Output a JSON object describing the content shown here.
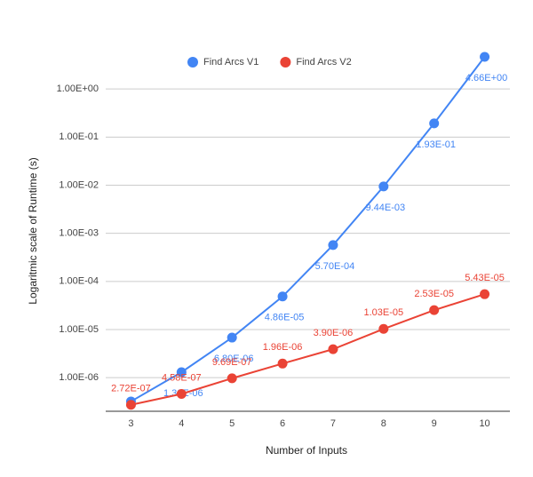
{
  "chart_data": {
    "type": "line",
    "x_label": "Number of Inputs",
    "y_label": "Logaritmic scale of Runtime (s)",
    "categories": [
      "3",
      "4",
      "5",
      "6",
      "7",
      "8",
      "9",
      "10"
    ],
    "series": [
      {
        "name": "Find Arcs V1",
        "color": "#4285f4",
        "values": [
          3.2e-07,
          1.3e-06,
          6.8e-06,
          4.86e-05,
          0.00057,
          0.00944,
          0.193,
          4.66
        ],
        "value_labels": [
          null,
          "1.30E-06",
          "6.80E-06",
          "4.86E-05",
          "5.70E-04",
          "9.44E-03",
          "1.93E-01",
          "4.66E+00"
        ]
      },
      {
        "name": "Find Arcs V2",
        "color": "#ea4335",
        "values": [
          2.72e-07,
          4.58e-07,
          9.69e-07,
          1.96e-06,
          3.9e-06,
          1.03e-05,
          2.53e-05,
          5.43e-05
        ],
        "value_labels": [
          "2.72E-07",
          "4.58E-07",
          "9.69E-07",
          "1.96E-06",
          "3.90E-06",
          "1.03E-05",
          "2.53E-05",
          "5.43E-05"
        ]
      }
    ],
    "log_scale": true,
    "ylim": [
      2e-07,
      10
    ],
    "yticks": [
      {
        "value": 1e-06,
        "label": "1.00E-06"
      },
      {
        "value": 1e-05,
        "label": "1.00E-05"
      },
      {
        "value": 0.0001,
        "label": "1.00E-04"
      },
      {
        "value": 0.001,
        "label": "1.00E-03"
      },
      {
        "value": 0.01,
        "label": "1.00E-02"
      },
      {
        "value": 0.1,
        "label": "1.00E-01"
      },
      {
        "value": 1,
        "label": "1.00E+00"
      }
    ],
    "grid": true,
    "legend": "top"
  }
}
